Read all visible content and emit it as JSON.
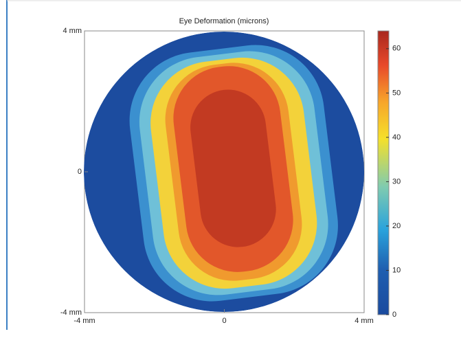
{
  "chart_data": {
    "type": "heatmap",
    "title": "Eye Deformation (microns)",
    "xlim": [
      -4,
      4
    ],
    "ylim": [
      -4,
      4
    ],
    "xticks": [
      {
        "value": -4,
        "label": "-4 mm"
      },
      0,
      {
        "value": 4,
        "label": "4 mm"
      }
    ],
    "yticks": [
      {
        "value": -4,
        "label": "-4 mm"
      },
      0,
      {
        "value": 4,
        "label": "4 mm"
      }
    ],
    "clim": [
      0,
      64
    ],
    "cticks": [
      0,
      10,
      20,
      30,
      40,
      50,
      60
    ]
  }
}
